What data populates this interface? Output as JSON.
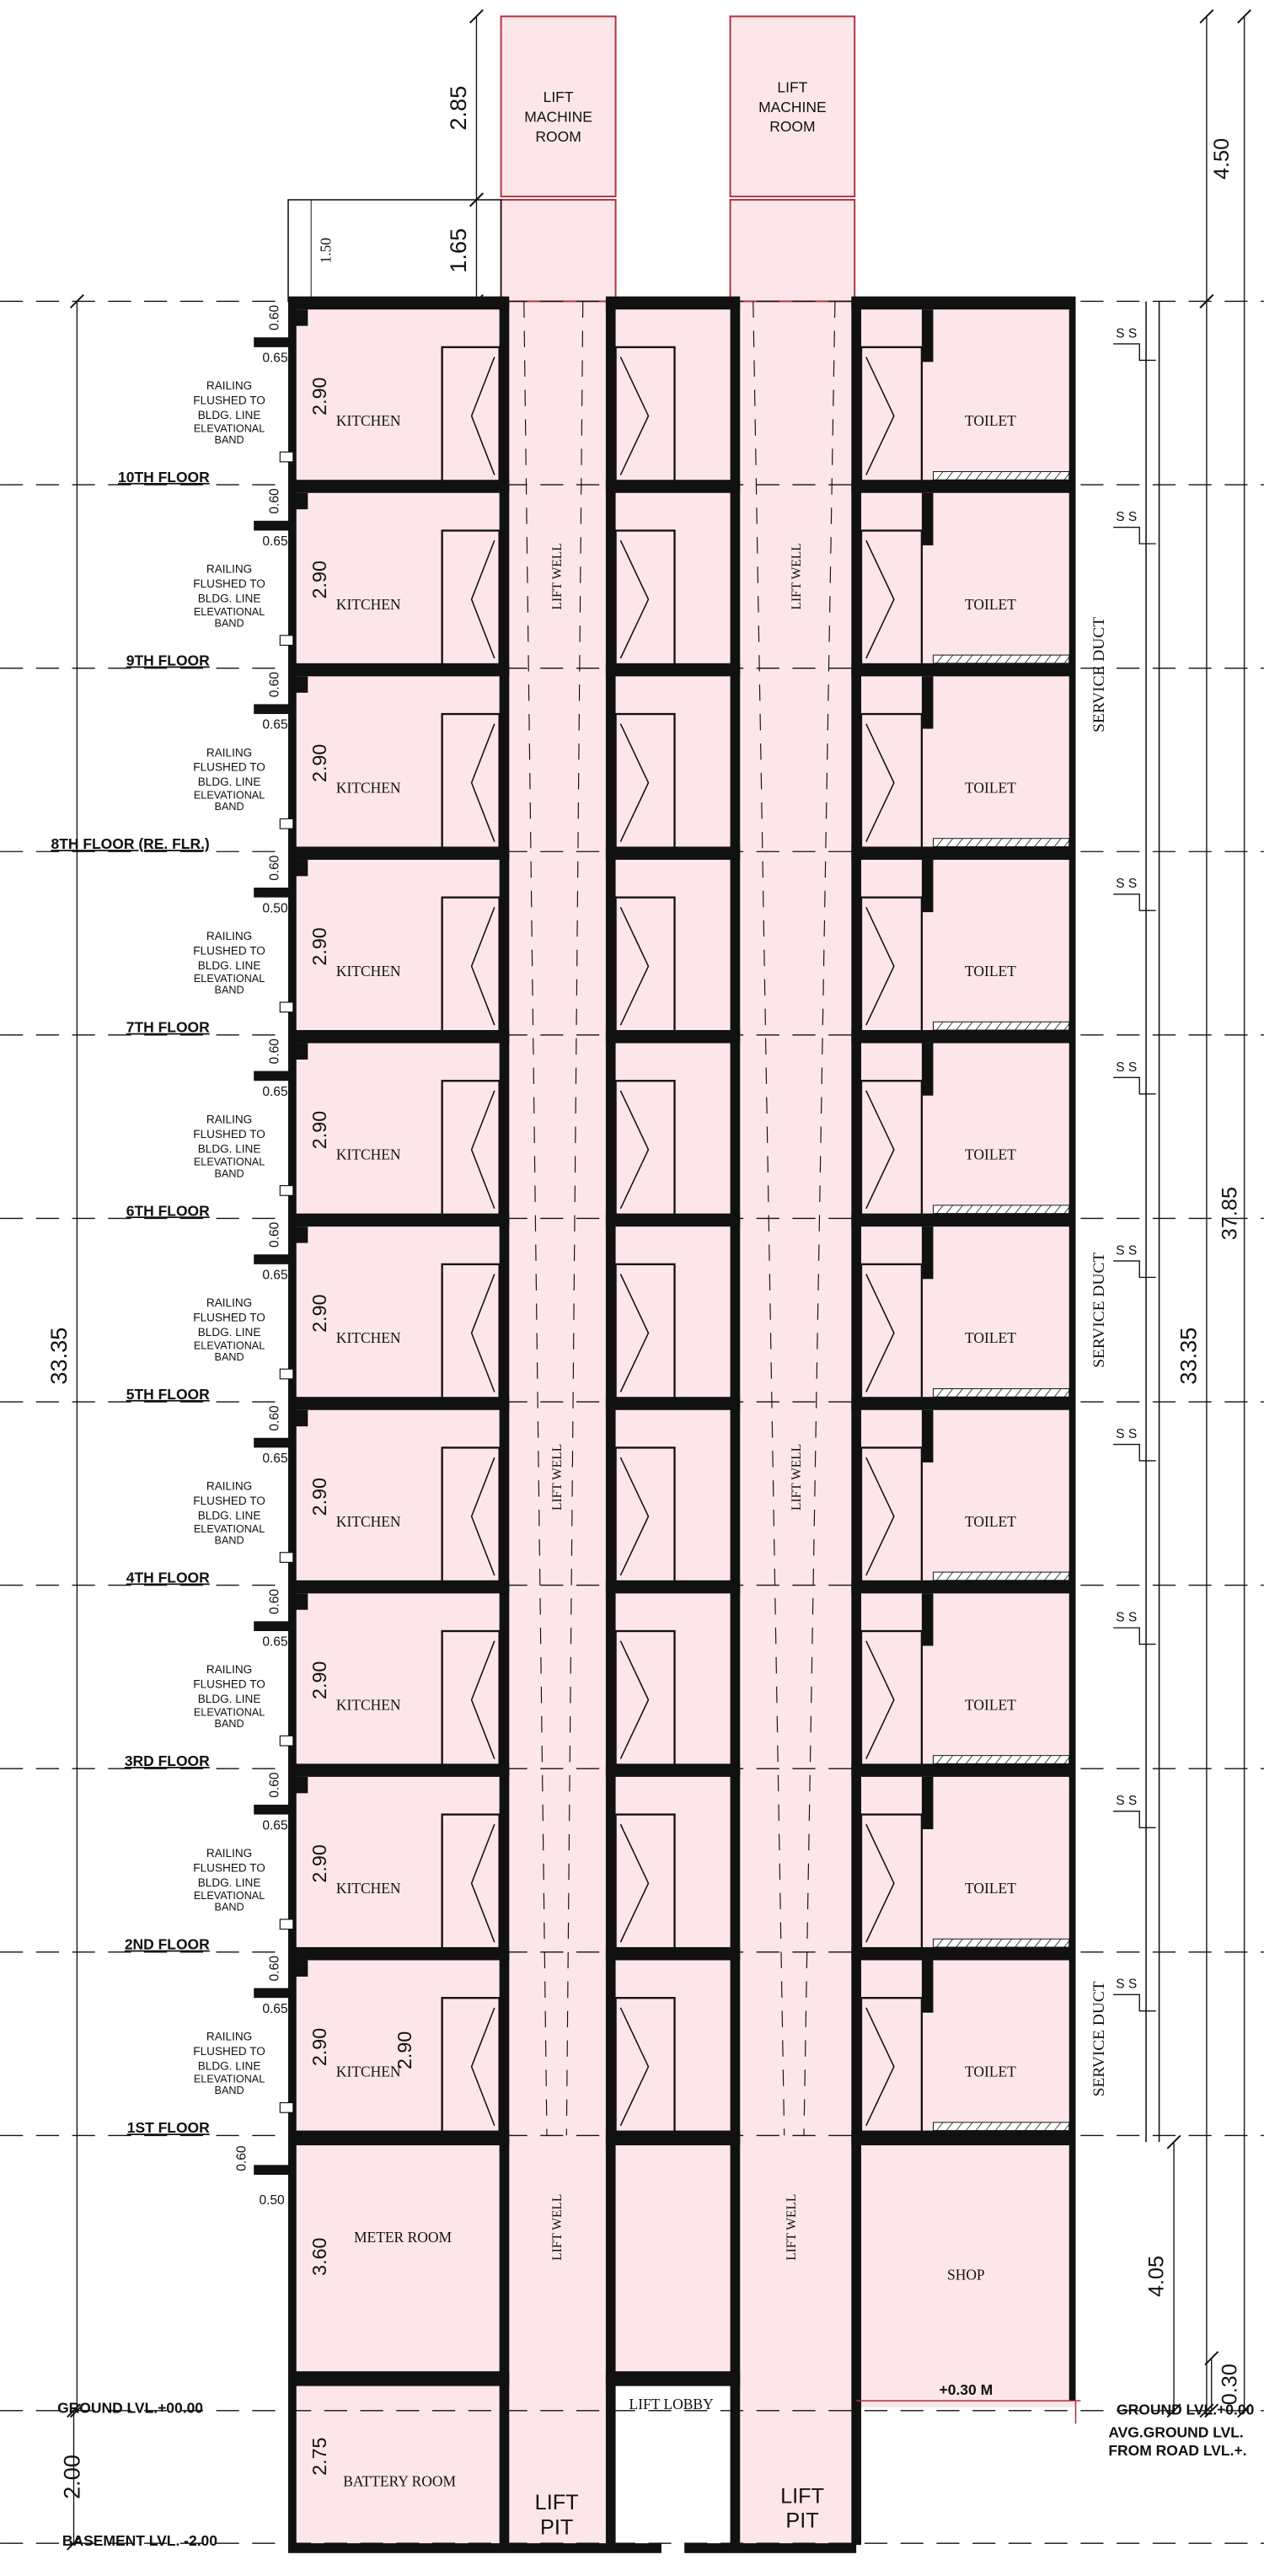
{
  "lift_machine_rooms": [
    [
      "LIFT",
      "MACHINE",
      "ROOM"
    ],
    [
      "LIFT",
      "MACHINE",
      "ROOM"
    ]
  ],
  "storeys": [
    {
      "floor": "10TH FLOOR",
      "kitchen": "KITCHEN",
      "toilet": "TOILET",
      "top_dim": "0.60",
      "sill_dim": "0.65",
      "height_dim": "2.90",
      "railing": [
        "RAILING",
        "FLUSHED TO",
        "BLDG. LINE"
      ],
      "band": [
        "ELEVATIONAL",
        "BAND"
      ],
      "ss": "S S"
    },
    {
      "floor": "9TH FLOOR",
      "kitchen": "KITCHEN",
      "toilet": "TOILET",
      "top_dim": "0.60",
      "sill_dim": "0.65",
      "height_dim": "2.90",
      "railing": [
        "RAILING",
        "FLUSHED TO",
        "BLDG. LINE"
      ],
      "band": [
        "ELEVATIONAL",
        "BAND"
      ],
      "ss": "S S"
    },
    {
      "floor": "8TH FLOOR (RE. FLR.)",
      "kitchen": "KITCHEN",
      "toilet": "TOILET",
      "top_dim": "0.60",
      "sill_dim": "0.65",
      "height_dim": "2.90",
      "railing": [
        "RAILING",
        "FLUSHED TO",
        "BLDG. LINE"
      ],
      "band": [
        "ELEVATIONAL",
        "BAND"
      ]
    },
    {
      "floor": "7TH FLOOR",
      "kitchen": "KITCHEN",
      "toilet": "TOILET",
      "top_dim": "0.60",
      "sill_dim": "0.50",
      "height_dim": "2.90",
      "railing": [
        "RAILING",
        "FLUSHED TO",
        "BLDG. LINE"
      ],
      "band": [
        "ELEVATIONAL",
        "BAND"
      ],
      "ss": "S S"
    },
    {
      "floor": "6TH FLOOR",
      "kitchen": "KITCHEN",
      "toilet": "TOILET",
      "top_dim": "0.60",
      "sill_dim": "0.65",
      "height_dim": "2.90",
      "railing": [
        "RAILING",
        "FLUSHED TO",
        "BLDG. LINE"
      ],
      "band": [
        "ELEVATIONAL",
        "BAND"
      ],
      "ss": "S S"
    },
    {
      "floor": "5TH FLOOR",
      "kitchen": "KITCHEN",
      "toilet": "TOILET",
      "top_dim": "0.60",
      "sill_dim": "0.65",
      "height_dim": "2.90",
      "railing": [
        "RAILING",
        "FLUSHED TO",
        "BLDG. LINE"
      ],
      "band": [
        "ELEVATIONAL",
        "BAND"
      ],
      "ss": "S S"
    },
    {
      "floor": "4TH FLOOR",
      "kitchen": "KITCHEN",
      "toilet": "TOILET",
      "top_dim": "0.60",
      "sill_dim": "0.65",
      "height_dim": "2.90",
      "railing": [
        "RAILING",
        "FLUSHED TO",
        "BLDG. LINE"
      ],
      "band": [
        "ELEVATIONAL",
        "BAND"
      ],
      "ss": "S S"
    },
    {
      "floor": "3RD FLOOR",
      "kitchen": "KITCHEN",
      "toilet": "TOILET",
      "top_dim": "0.60",
      "sill_dim": "0.65",
      "height_dim": "2.90",
      "railing": [
        "RAILING",
        "FLUSHED TO",
        "BLDG. LINE"
      ],
      "band": [
        "ELEVATIONAL",
        "BAND"
      ],
      "ss": "S S"
    },
    {
      "floor": "2ND FLOOR",
      "kitchen": "KITCHEN",
      "toilet": "TOILET",
      "top_dim": "0.60",
      "sill_dim": "0.65",
      "height_dim": "2.90",
      "railing": [
        "RAILING",
        "FLUSHED TO",
        "BLDG. LINE"
      ],
      "band": [
        "ELEVATIONAL",
        "BAND"
      ],
      "ss": "S S"
    },
    {
      "floor": "1ST FLOOR",
      "kitchen": "KITCHEN",
      "toilet": "TOILET",
      "top_dim": "0.60",
      "sill_dim": "0.65",
      "height_dim": "2.90",
      "railing": [
        "RAILING",
        "FLUSHED TO",
        "BLDG. LINE"
      ],
      "band": [
        "ELEVATIONAL",
        "BAND"
      ],
      "ss": "S S"
    }
  ],
  "first_floor_inner_dim": "2.90",
  "lift_well_labels": [
    "LIFT WELL",
    "LIFT WELL",
    "LIFT WELL",
    "LIFT WELL",
    "LIFT WELL",
    "LIFT WELL"
  ],
  "service_duct_labels": [
    "SERVICE DUCT",
    "SERVICE DUCT",
    "SERVICE DUCT"
  ],
  "dimensions": {
    "machine_room": "2.85",
    "parapet": "1.65",
    "parapet_left": "1.50",
    "top_right": "4.50",
    "total_right": "37.85",
    "left_total": "33.35",
    "right_total": "33.35",
    "shop": "4.05",
    "plinth": "0.30",
    "basement": "2.00",
    "meter_room": "3.60",
    "battery_room": "2.75",
    "ground_top": "0.60",
    "ground_sill": "0.50"
  },
  "ground": {
    "meter_room": "METER ROOM",
    "shop": "SHOP",
    "shop_level": "+0.30 M",
    "lift_lobby": "LIFT LOBBY",
    "battery_room": "BATTERY ROOM",
    "lift_pits": [
      [
        "LIFT",
        "PIT"
      ],
      [
        "LIFT",
        "PIT"
      ]
    ],
    "ground_level": "GROUND LVL.+00.00",
    "ground_level_right": "GROUND LVL.+0.00",
    "avg_ground": [
      "AVG.GROUND LVL.",
      "FROM ROAD LVL.+."
    ],
    "basement_level": "BASEMENT LVL. -2.00"
  }
}
